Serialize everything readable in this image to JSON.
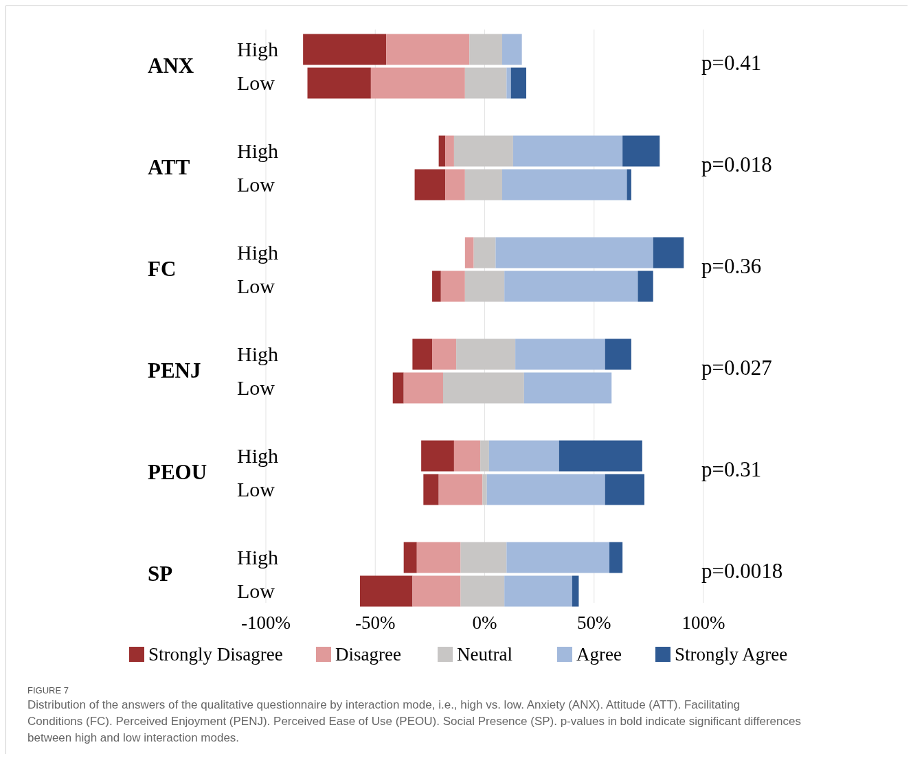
{
  "chart_data": {
    "type": "bar",
    "orientation": "horizontal",
    "categories": [
      "High",
      "Low",
      "High",
      "Low",
      "High",
      "Low",
      "High",
      "Low",
      "High",
      "Low",
      "High",
      "Low"
    ],
    "series": [
      {
        "name": "Strongly Disagree",
        "color": "#9b2f2f",
        "base": [
          -83,
          -81,
          -21,
          -32,
          null,
          -24,
          -33,
          -42,
          -29,
          -28,
          -37,
          -57
        ],
        "values": [
          38,
          29,
          3,
          14,
          null,
          4,
          9,
          5,
          15,
          7,
          6,
          24
        ]
      },
      {
        "name": "Disagree",
        "color": "#e09a9a",
        "base": [
          -45,
          -52,
          -18,
          -18,
          -9,
          -20,
          -24,
          -37,
          -14,
          -21,
          -31,
          -33
        ],
        "values": [
          38,
          43,
          4,
          9,
          4,
          11,
          11,
          18,
          12,
          20,
          20,
          22
        ]
      },
      {
        "name": "Neutral",
        "color": "#c8c6c5",
        "base": [
          -7,
          -9,
          -14,
          -9,
          -5,
          -9,
          -13,
          -19,
          -2,
          -1,
          -11,
          -11
        ],
        "values": [
          15,
          19,
          27,
          17,
          10,
          18,
          27,
          37,
          4,
          2,
          21,
          20
        ]
      },
      {
        "name": "Agree",
        "color": "#a2b9dc",
        "base": [
          8,
          10,
          13,
          8,
          5,
          9,
          14,
          18,
          2,
          1,
          10,
          9
        ],
        "values": [
          9,
          2,
          50,
          57,
          72,
          61,
          41,
          40,
          32,
          54,
          47,
          31
        ]
      },
      {
        "name": "Strongly Agree",
        "color": "#2f5a93",
        "base": [
          null,
          12,
          63,
          65,
          77,
          70,
          55,
          null,
          34,
          55,
          57,
          40
        ],
        "values": [
          null,
          7,
          17,
          2,
          14,
          7,
          12,
          null,
          38,
          18,
          6,
          3
        ]
      }
    ],
    "xlim": [
      -100,
      100
    ],
    "xticks": [
      {
        "value": -100,
        "label": "-100%"
      },
      {
        "value": -50,
        "label": "-50%"
      },
      {
        "value": 0,
        "label": "0%"
      },
      {
        "value": 50,
        "label": "50%"
      },
      {
        "value": 100,
        "label": "100%"
      }
    ],
    "grid": "x",
    "legend": "bottom",
    "annotations": [
      "ANX",
      "ATT",
      "FC",
      "PENJ",
      "PEOU",
      "SP",
      "p=0.41",
      "p=0.018",
      "p=0.36",
      "p=0.027",
      "p=0.31",
      "p=0.0018",
      "FIGURE 7",
      "Distribution of the answers of the qualitative questionnaire by interaction mode, i.e., high vs. low. Anxiety (ANX). Attitude (ATT). Facilitating Conditions (FC). Perceived Enjoyment (PENJ). Perceived Ease of Use (PEOU). Social Presence (SP). p-values in bold indicate significant differences between high and low interaction modes."
    ]
  }
}
